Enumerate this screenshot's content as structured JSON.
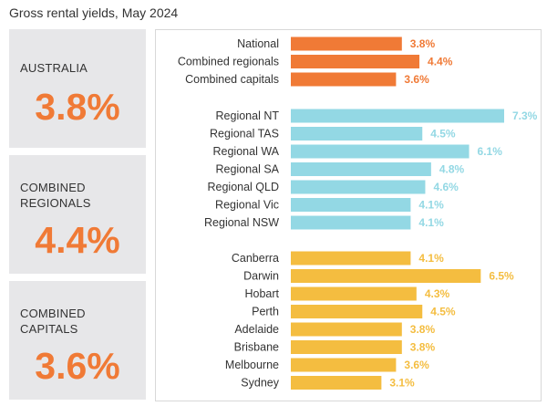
{
  "title": "Gross rental yields, May 2024",
  "cards": [
    {
      "label": "AUSTRALIA",
      "value": "3.8%"
    },
    {
      "label": "COMBINED\nREGIONALS",
      "value": "4.4%"
    },
    {
      "label": "COMBINED\nCAPITALS",
      "value": "3.6%"
    }
  ],
  "chart_data": {
    "type": "bar",
    "orientation": "horizontal",
    "title": "Gross rental yields, May 2024",
    "xlim": [
      0,
      8
    ],
    "grid": false,
    "groups": [
      {
        "color": "#f07a36",
        "categories": [
          "National",
          "Combined regionals",
          "Combined capitals"
        ],
        "values": [
          3.8,
          4.4,
          3.6
        ],
        "labels": [
          "3.8%",
          "4.4%",
          "3.6%"
        ]
      },
      {
        "color": "#93d8e4",
        "categories": [
          "Regional NT",
          "Regional TAS",
          "Regional WA",
          "Regional SA",
          "Regional QLD",
          "Regional Vic",
          "Regional NSW"
        ],
        "values": [
          7.3,
          4.5,
          6.1,
          4.8,
          4.6,
          4.1,
          4.1
        ],
        "labels": [
          "7.3%",
          "4.5%",
          "6.1%",
          "4.8%",
          "4.6%",
          "4.1%",
          "4.1%"
        ]
      },
      {
        "color": "#f4bd40",
        "categories": [
          "Canberra",
          "Darwin",
          "Hobart",
          "Perth",
          "Adelaide",
          "Brisbane",
          "Melbourne",
          "Sydney"
        ],
        "values": [
          4.1,
          6.5,
          4.3,
          4.5,
          3.8,
          3.8,
          3.6,
          3.1
        ],
        "labels": [
          "4.1%",
          "6.5%",
          "4.3%",
          "4.5%",
          "3.8%",
          "3.8%",
          "3.6%",
          "3.1%"
        ]
      }
    ]
  }
}
